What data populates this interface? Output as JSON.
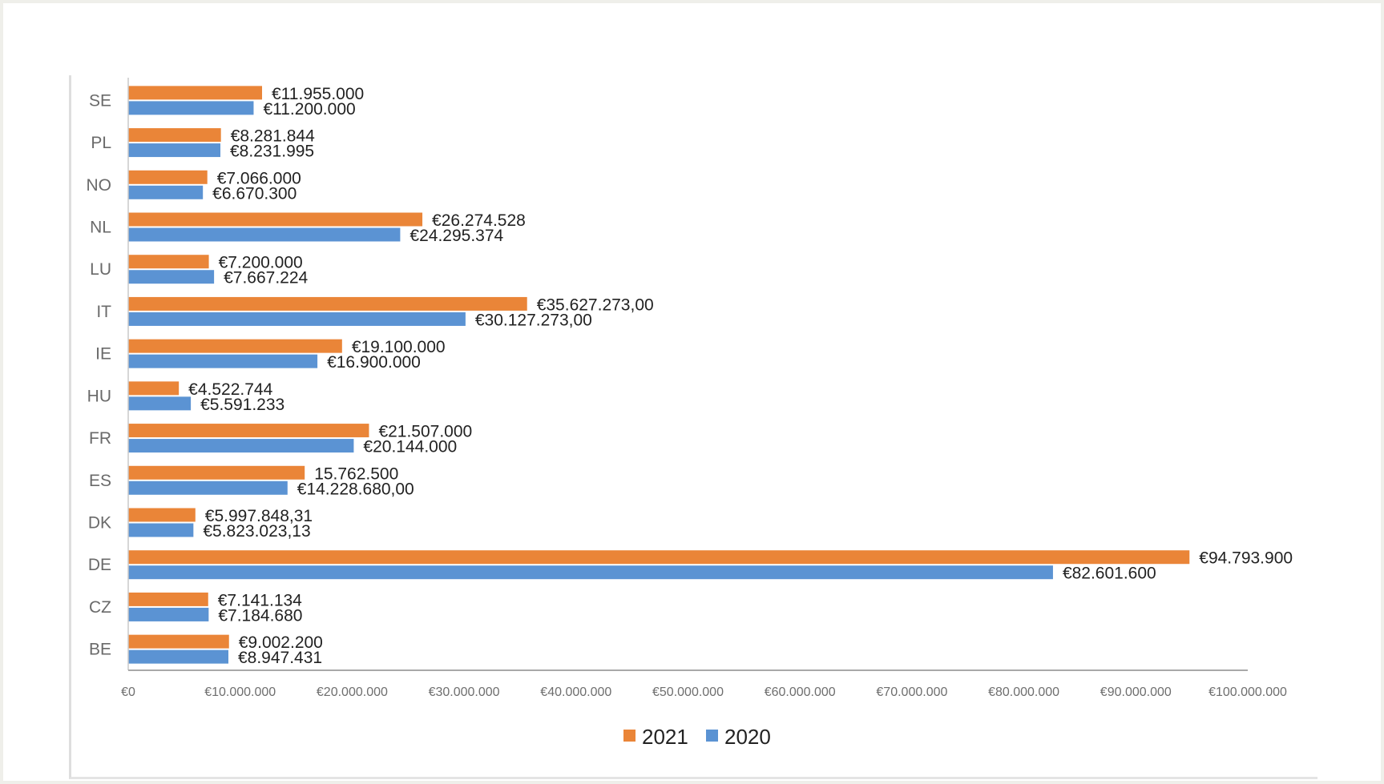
{
  "chart_data": {
    "type": "bar",
    "orientation": "horizontal",
    "title": "",
    "xlabel": "",
    "ylabel": "",
    "xlim": [
      0,
      100000000
    ],
    "grid": false,
    "legend_position": "bottom-center",
    "categories": [
      "BE",
      "CZ",
      "DE",
      "DK",
      "ES",
      "FR",
      "HU",
      "IE",
      "IT",
      "LU",
      "NL",
      "NO",
      "PL",
      "SE"
    ],
    "x_tick_labels": [
      "€0",
      "€10.000.000",
      "€20.000.000",
      "€30.000.000",
      "€40.000.000",
      "€50.000.000",
      "€60.000.000",
      "€70.000.000",
      "€80.000.000",
      "€90.000.000",
      "€100.000.000"
    ],
    "series": [
      {
        "name": "2021",
        "color": "#ea8538",
        "values": [
          9002200,
          7141134,
          94793900,
          5997848.31,
          15762500,
          21507000,
          4522744,
          19100000,
          35627273,
          7200000,
          26274528,
          7066000,
          8281844,
          11955000
        ],
        "labels": [
          "€9.002.200",
          "€7.141.134",
          "€94.793.900",
          "€5.997.848,31",
          "15.762.500",
          "€21.507.000",
          "€4.522.744",
          "€19.100.000",
          "€35.627.273,00",
          "€7.200.000",
          "€26.274.528",
          "€7.066.000",
          "€8.281.844",
          "€11.955.000"
        ]
      },
      {
        "name": "2020",
        "color": "#5b93d3",
        "values": [
          8947431,
          7184680,
          82601600,
          5823023.13,
          14228680,
          20144000,
          5591233,
          16900000,
          30127273,
          7667224,
          24295374,
          6670300,
          8231995,
          11200000
        ],
        "labels": [
          "€8.947.431",
          "€7.184.680",
          "€82.601.600",
          "€5.823.023,13",
          "€14.228.680,00",
          "€20.144.000",
          "€5.591.233",
          "€16.900.000",
          "€30.127.273,00",
          "€7.667.224",
          "€24.295.374",
          "€6.670.300",
          "€8.231.995",
          "€11.200.000"
        ]
      }
    ]
  }
}
